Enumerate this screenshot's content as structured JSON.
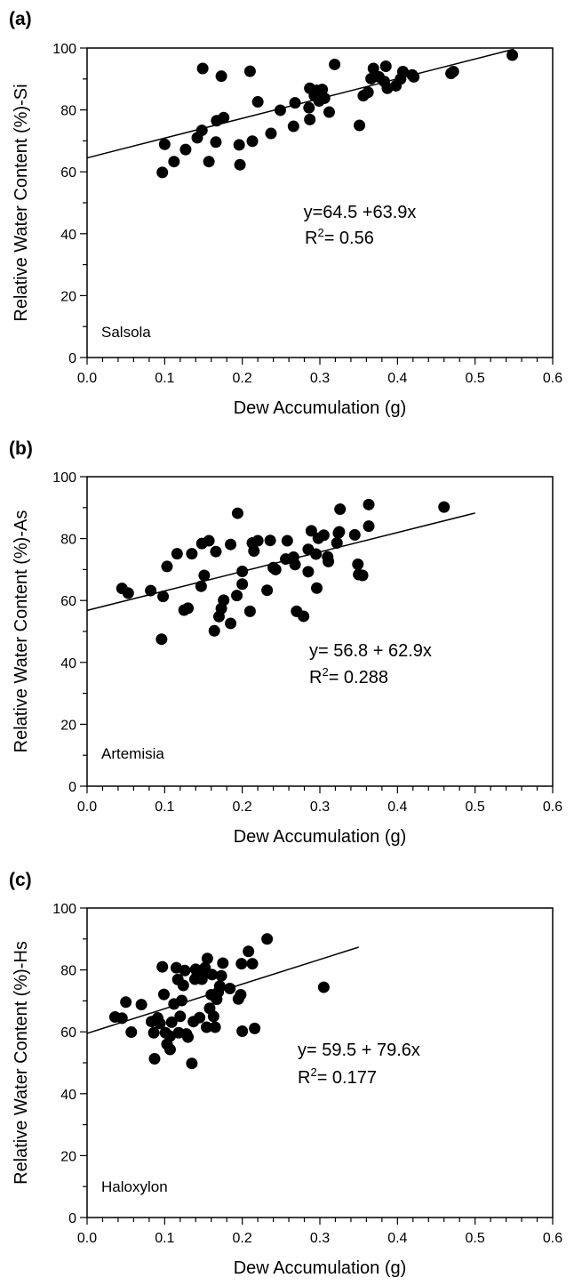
{
  "chart_data": [
    {
      "type": "scatter",
      "panel_label": "(a)",
      "ylabel": "Relative Water Content (%)-Si",
      "xlabel": "Dew Accumulation (g)",
      "xlim": [
        0,
        0.6
      ],
      "ylim": [
        0,
        100
      ],
      "xticks": [
        "0.0",
        "0.1",
        "0.2",
        "0.3",
        "0.4",
        "0.5",
        "0.6"
      ],
      "yticks": [
        "0",
        "20",
        "40",
        "60",
        "80",
        "100"
      ],
      "species": "Salsola",
      "equation": "y=64.5 +63.9x",
      "r2_text": "R",
      "r2_sup": "2",
      "r2_value": "= 0.56",
      "fit": {
        "intercept": 64.5,
        "slope": 63.9,
        "x_range": [
          0,
          0.55
        ]
      },
      "points": [
        [
          0.097,
          59.8
        ],
        [
          0.1,
          68.9
        ],
        [
          0.112,
          63.3
        ],
        [
          0.127,
          67.2
        ],
        [
          0.142,
          71.0
        ],
        [
          0.148,
          73.4
        ],
        [
          0.149,
          93.4
        ],
        [
          0.157,
          63.3
        ],
        [
          0.166,
          69.6
        ],
        [
          0.167,
          76.5
        ],
        [
          0.173,
          90.9
        ],
        [
          0.176,
          77.5
        ],
        [
          0.196,
          68.7
        ],
        [
          0.197,
          62.3
        ],
        [
          0.21,
          92.5
        ],
        [
          0.213,
          69.9
        ],
        [
          0.22,
          82.6
        ],
        [
          0.237,
          72.4
        ],
        [
          0.249,
          79.9
        ],
        [
          0.266,
          74.7
        ],
        [
          0.268,
          82.3
        ],
        [
          0.286,
          80.7
        ],
        [
          0.287,
          87.0
        ],
        [
          0.287,
          76.9
        ],
        [
          0.293,
          84.6
        ],
        [
          0.296,
          86.3
        ],
        [
          0.299,
          82.9
        ],
        [
          0.303,
          86.6
        ],
        [
          0.306,
          83.8
        ],
        [
          0.312,
          79.3
        ],
        [
          0.319,
          94.7
        ],
        [
          0.351,
          75.0
        ],
        [
          0.356,
          84.6
        ],
        [
          0.362,
          85.7
        ],
        [
          0.366,
          90.1
        ],
        [
          0.369,
          93.4
        ],
        [
          0.376,
          90.7
        ],
        [
          0.383,
          89.2
        ],
        [
          0.385,
          94.1
        ],
        [
          0.387,
          87.0
        ],
        [
          0.398,
          87.8
        ],
        [
          0.404,
          90.0
        ],
        [
          0.407,
          92.4
        ],
        [
          0.419,
          91.3
        ],
        [
          0.421,
          90.7
        ],
        [
          0.469,
          91.8
        ],
        [
          0.472,
          92.4
        ],
        [
          0.548,
          97.7
        ]
      ]
    },
    {
      "type": "scatter",
      "panel_label": "(b)",
      "ylabel": "Relative Water Content (%)-As",
      "xlabel": "Dew Accumulation (g)",
      "xlim": [
        0,
        0.6
      ],
      "ylim": [
        0,
        100
      ],
      "xticks": [
        "0.0",
        "0.1",
        "0.2",
        "0.3",
        "0.4",
        "0.5",
        "0.6"
      ],
      "yticks": [
        "0",
        "20",
        "40",
        "60",
        "80",
        "100"
      ],
      "species": "Artemisia",
      "equation": "y= 56.8 + 62.9x",
      "r2_text": "R",
      "r2_sup": "2",
      "r2_value": "= 0.288",
      "fit": {
        "intercept": 56.8,
        "slope": 62.9,
        "x_range": [
          0,
          0.5
        ]
      },
      "points": [
        [
          0.045,
          63.9
        ],
        [
          0.053,
          62.4
        ],
        [
          0.082,
          63.2
        ],
        [
          0.096,
          47.5
        ],
        [
          0.098,
          61.3
        ],
        [
          0.103,
          71.0
        ],
        [
          0.116,
          75.1
        ],
        [
          0.125,
          56.9
        ],
        [
          0.13,
          57.5
        ],
        [
          0.135,
          75.1
        ],
        [
          0.147,
          64.6
        ],
        [
          0.148,
          78.4
        ],
        [
          0.151,
          68.1
        ],
        [
          0.157,
          79.3
        ],
        [
          0.164,
          50.2
        ],
        [
          0.166,
          75.8
        ],
        [
          0.17,
          54.8
        ],
        [
          0.173,
          57.4
        ],
        [
          0.176,
          60.1
        ],
        [
          0.185,
          52.6
        ],
        [
          0.185,
          78.1
        ],
        [
          0.193,
          61.6
        ],
        [
          0.194,
          88.2
        ],
        [
          0.2,
          65.3
        ],
        [
          0.2,
          69.4
        ],
        [
          0.21,
          56.5
        ],
        [
          0.213,
          78.6
        ],
        [
          0.215,
          76.0
        ],
        [
          0.22,
          79.3
        ],
        [
          0.232,
          63.3
        ],
        [
          0.236,
          79.4
        ],
        [
          0.24,
          70.6
        ],
        [
          0.243,
          70.0
        ],
        [
          0.256,
          73.4
        ],
        [
          0.258,
          79.3
        ],
        [
          0.266,
          74.0
        ],
        [
          0.268,
          71.6
        ],
        [
          0.27,
          56.5
        ],
        [
          0.279,
          54.9
        ],
        [
          0.285,
          69.3
        ],
        [
          0.285,
          76.5
        ],
        [
          0.289,
          82.5
        ],
        [
          0.295,
          75.0
        ],
        [
          0.296,
          64.0
        ],
        [
          0.298,
          80.1
        ],
        [
          0.305,
          81.1
        ],
        [
          0.31,
          74.1
        ],
        [
          0.311,
          72.6
        ],
        [
          0.322,
          78.6
        ],
        [
          0.324,
          81.8
        ],
        [
          0.325,
          82.2
        ],
        [
          0.326,
          89.5
        ],
        [
          0.345,
          81.2
        ],
        [
          0.349,
          71.7
        ],
        [
          0.35,
          68.4
        ],
        [
          0.355,
          68.1
        ],
        [
          0.363,
          91.0
        ],
        [
          0.363,
          84.0
        ],
        [
          0.46,
          90.2
        ]
      ]
    },
    {
      "type": "scatter",
      "panel_label": "(c)",
      "ylabel": "Relative Water Content (%)-Hs",
      "xlabel": "Dew Accumulation (g)",
      "xlim": [
        0,
        0.6
      ],
      "ylim": [
        0,
        100
      ],
      "xticks": [
        "0.0",
        "0.1",
        "0.2",
        "0.3",
        "0.4",
        "0.5",
        "0.6"
      ],
      "yticks": [
        "0",
        "20",
        "40",
        "60",
        "80",
        "100"
      ],
      "species": "Haloxylon",
      "equation": "y= 59.5 + 79.6x",
      "r2_text": "R",
      "r2_sup": "2",
      "r2_value": "= 0.177",
      "fit": {
        "intercept": 59.5,
        "slope": 79.6,
        "x_range": [
          0,
          0.35
        ]
      },
      "points": [
        [
          0.036,
          64.8
        ],
        [
          0.045,
          64.4
        ],
        [
          0.05,
          69.6
        ],
        [
          0.057,
          59.9
        ],
        [
          0.07,
          68.8
        ],
        [
          0.083,
          63.3
        ],
        [
          0.086,
          59.7
        ],
        [
          0.087,
          51.3
        ],
        [
          0.091,
          64.5
        ],
        [
          0.094,
          62.7
        ],
        [
          0.097,
          81.0
        ],
        [
          0.099,
          72.1
        ],
        [
          0.101,
          59.7
        ],
        [
          0.103,
          56.0
        ],
        [
          0.107,
          54.3
        ],
        [
          0.107,
          58.6
        ],
        [
          0.109,
          63.1
        ],
        [
          0.112,
          69.0
        ],
        [
          0.115,
          80.7
        ],
        [
          0.117,
          76.9
        ],
        [
          0.118,
          59.7
        ],
        [
          0.12,
          65.0
        ],
        [
          0.122,
          70.1
        ],
        [
          0.124,
          75.0
        ],
        [
          0.126,
          79.8
        ],
        [
          0.128,
          59.3
        ],
        [
          0.13,
          58.3
        ],
        [
          0.135,
          49.8
        ],
        [
          0.137,
          63.3
        ],
        [
          0.139,
          77.0
        ],
        [
          0.14,
          80.2
        ],
        [
          0.142,
          78.5
        ],
        [
          0.145,
          64.6
        ],
        [
          0.148,
          77.0
        ],
        [
          0.15,
          78.7
        ],
        [
          0.152,
          80.7
        ],
        [
          0.154,
          61.5
        ],
        [
          0.155,
          83.7
        ],
        [
          0.158,
          67.6
        ],
        [
          0.16,
          72.0
        ],
        [
          0.161,
          78.5
        ],
        [
          0.163,
          65.0
        ],
        [
          0.165,
          61.5
        ],
        [
          0.167,
          70.5
        ],
        [
          0.169,
          72.8
        ],
        [
          0.171,
          74.8
        ],
        [
          0.173,
          78.1
        ],
        [
          0.175,
          82.2
        ],
        [
          0.184,
          74.0
        ],
        [
          0.195,
          70.6
        ],
        [
          0.198,
          72.0
        ],
        [
          0.199,
          82.0
        ],
        [
          0.2,
          60.2
        ],
        [
          0.208,
          86.0
        ],
        [
          0.213,
          82.0
        ],
        [
          0.216,
          61.1
        ],
        [
          0.232,
          90.0
        ],
        [
          0.305,
          74.4
        ]
      ]
    }
  ]
}
